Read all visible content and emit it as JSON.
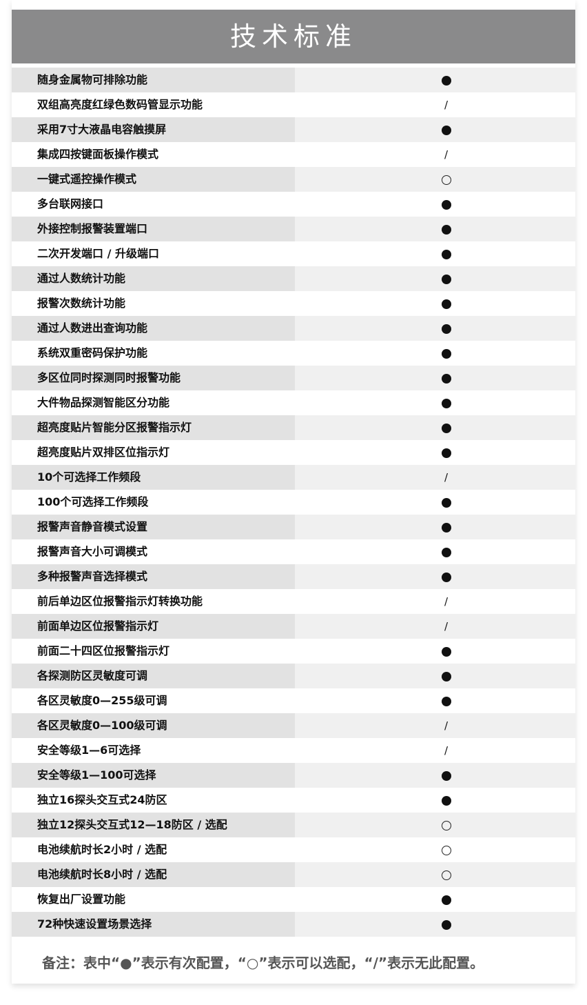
{
  "title": "技术标准",
  "rows": [
    {
      "label": "随身金属物可排除功能",
      "mark": "full"
    },
    {
      "label": "双组高亮度红绿色数码管显示功能",
      "mark": "none"
    },
    {
      "label": "采用7寸大液晶电容触摸屏",
      "mark": "full"
    },
    {
      "label": "集成四按键面板操作模式",
      "mark": "none"
    },
    {
      "label": "一键式遥控操作模式",
      "mark": "optional"
    },
    {
      "label": "多台联网接口",
      "mark": "full"
    },
    {
      "label": "外接控制报警装置端口",
      "mark": "full"
    },
    {
      "label": "二次开发端口 / 升级端口",
      "mark": "full"
    },
    {
      "label": "通过人数统计功能",
      "mark": "full"
    },
    {
      "label": "报警次数统计功能",
      "mark": "full"
    },
    {
      "label": "通过人数进出查询功能",
      "mark": "full"
    },
    {
      "label": "系统双重密码保护功能",
      "mark": "full"
    },
    {
      "label": "多区位同时探测同时报警功能",
      "mark": "full"
    },
    {
      "label": "大件物品探测智能区分功能",
      "mark": "full"
    },
    {
      "label": "超亮度贴片智能分区报警指示灯",
      "mark": "full"
    },
    {
      "label": "超亮度贴片双排区位指示灯",
      "mark": "full"
    },
    {
      "label": "10个可选择工作频段",
      "mark": "none"
    },
    {
      "label": "100个可选择工作频段",
      "mark": "full"
    },
    {
      "label": "报警声音静音模式设置",
      "mark": "full"
    },
    {
      "label": "报警声音大小可调模式",
      "mark": "full"
    },
    {
      "label": "多种报警声音选择模式",
      "mark": "full"
    },
    {
      "label": "前后单边区位报警指示灯转换功能",
      "mark": "none"
    },
    {
      "label": "前面单边区位报警指示灯",
      "mark": "none"
    },
    {
      "label": "前面二十四区位报警指示灯",
      "mark": "full"
    },
    {
      "label": "各探测防区灵敏度可调",
      "mark": "full"
    },
    {
      "label": "各区灵敏度0—255级可调",
      "mark": "full"
    },
    {
      "label": "各区灵敏度0—100级可调",
      "mark": "none"
    },
    {
      "label": "安全等级1—6可选择",
      "mark": "none"
    },
    {
      "label": "安全等级1—100可选择",
      "mark": "full"
    },
    {
      "label": "独立16探头交互式24防区",
      "mark": "full"
    },
    {
      "label": "独立12探头交互式12—18防区 / 选配",
      "mark": "optional"
    },
    {
      "label": "电池续航时长2小时 / 选配",
      "mark": "optional"
    },
    {
      "label": "电池续航时长8小时 / 选配",
      "mark": "optional"
    },
    {
      "label": "恢复出厂设置功能",
      "mark": "full"
    },
    {
      "label": "72种快速设置场景选择",
      "mark": "full"
    }
  ],
  "note": "备注：表中“●”表示有次配置，“○”表示可以选配，“/”表示无此配置。"
}
